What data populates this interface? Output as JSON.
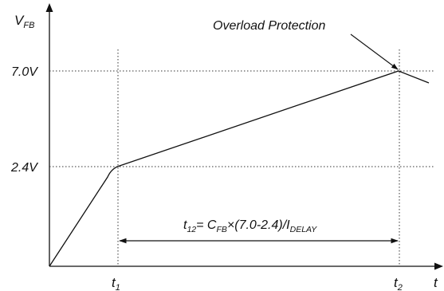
{
  "chart_data": {
    "type": "line",
    "ylabel": {
      "base": "V",
      "sub": "FB"
    },
    "xlabel": "t",
    "y_ticks": [
      {
        "value": 2.4,
        "label": "2.4V"
      },
      {
        "value": 7.0,
        "label": "7.0V"
      }
    ],
    "x_ticks": [
      {
        "key": "t1",
        "base": "t",
        "sub": "1"
      },
      {
        "key": "t2",
        "base": "t",
        "sub": "2"
      }
    ],
    "formula": {
      "p1": "t",
      "s1": "12",
      "p2": "= C",
      "s2": "FB",
      "p3": "×(7.0-2.4)/I",
      "s3": "DELAY"
    },
    "annotation": "Overload Protection"
  },
  "colors": {
    "line": "#111111",
    "guide": "#333333",
    "background": "#ffffff"
  }
}
